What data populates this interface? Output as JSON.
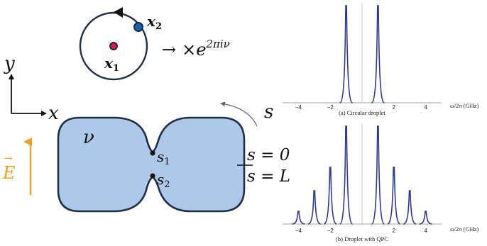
{
  "left_diagram": {
    "particle1_label": "x",
    "particle1_sub": "1",
    "particle2_label": "x",
    "particle2_sub": "2",
    "phase_arrow": "→",
    "phase_times": "×",
    "phase_base": "e",
    "phase_exponent": "2πiν",
    "axis_y_label": "y",
    "axis_x_label": "x",
    "field_label": "E",
    "field_vector_mark": "→",
    "filling_label": "ν",
    "point1_label": "s",
    "point1_sub": "1",
    "point2_label": "s",
    "point2_sub": "2",
    "arc_label": "s",
    "start_label": "s = 0",
    "end_label": "s = L",
    "colors": {
      "droplet_fill": "#adc8e8",
      "droplet_stroke": "#1f2f4a",
      "particle1": "#e01d24",
      "particle2": "#1f5fa6",
      "field_arrow": "#f39c1e"
    }
  },
  "spectra": {
    "xlabel": "ω/2π (GHz)",
    "line_color": "#2e3a8c",
    "panels": [
      {
        "caption": "(a) Circular droplet",
        "ticks": [
          "−4",
          "−2",
          "2",
          "4"
        ],
        "peaks": [
          {
            "x": -1.0,
            "height": 1.0
          },
          {
            "x": 1.0,
            "height": 1.0
          }
        ]
      },
      {
        "caption": "(b) Droplet with QPC",
        "ticks": [
          "−4",
          "−2",
          "2",
          "4"
        ],
        "peaks": [
          {
            "x": -4.0,
            "height": 0.13
          },
          {
            "x": -3.0,
            "height": 0.34
          },
          {
            "x": -2.0,
            "height": 0.58
          },
          {
            "x": -1.0,
            "height": 1.0
          },
          {
            "x": 1.0,
            "height": 1.0
          },
          {
            "x": 2.0,
            "height": 0.58
          },
          {
            "x": 3.0,
            "height": 0.34
          },
          {
            "x": 4.0,
            "height": 0.13
          }
        ]
      }
    ]
  }
}
